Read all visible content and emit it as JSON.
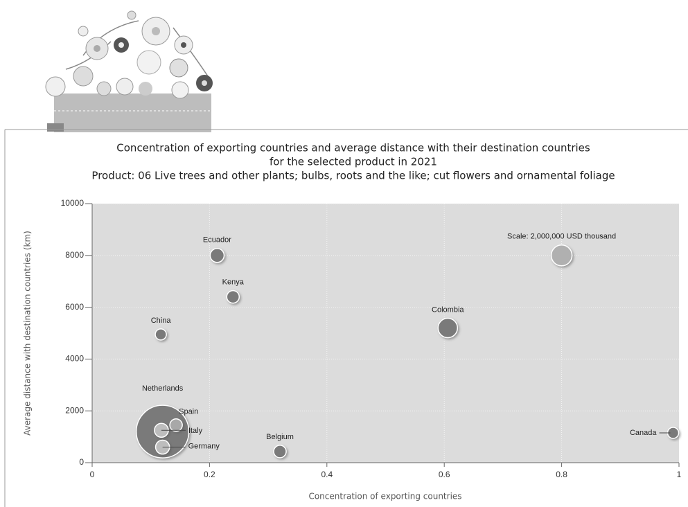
{
  "chart_data": {
    "type": "bubble",
    "title_lines": [
      "Concentration of exporting countries and average distance with their destination countries",
      "for the selected product in 2021",
      "Product: 06 Live trees and other plants; bulbs, roots and the like; cut flowers and ornamental foliage"
    ],
    "x_label": "Concentration of exporting countries",
    "y_label": "Average distance with destination countries (km)",
    "labels": [
      "Netherlands",
      "Ecuador",
      "Kenya",
      "China",
      "Colombia",
      "Spain",
      "Italy",
      "Germany",
      "Belgium",
      "Canada"
    ],
    "x": [
      0.12,
      0.213,
      0.24,
      0.117,
      0.606,
      0.143,
      0.118,
      0.12,
      0.32,
      0.99
    ],
    "values": [
      1200,
      8000,
      6400,
      4950,
      5200,
      1450,
      1250,
      600,
      430,
      1150
    ],
    "sizes": [
      12800000,
      900000,
      720000,
      570000,
      1740000,
      720000,
      900000,
      900000,
      720000,
      570000
    ],
    "colors": [
      "#7a7a7a",
      "#7a7a7a",
      "#7a7a7a",
      "#7a7a7a",
      "#7a7a7a",
      "#a8a8a8",
      "#bdbdbd",
      "#bdbdbd",
      "#7a7a7a",
      "#7a7a7a"
    ],
    "scale": {
      "label": "Scale: 2,000,000 USD thousand",
      "x": 0.8,
      "y": 8000,
      "size": 2000000,
      "color": "#b0b0b0"
    },
    "xlim": [
      0,
      1
    ],
    "ylim": [
      0,
      10000
    ],
    "xticks": [
      0,
      0.2,
      0.4,
      0.6,
      0.8,
      1
    ],
    "yticks": [
      0,
      2000,
      4000,
      6000,
      8000,
      10000
    ],
    "grid": true
  }
}
